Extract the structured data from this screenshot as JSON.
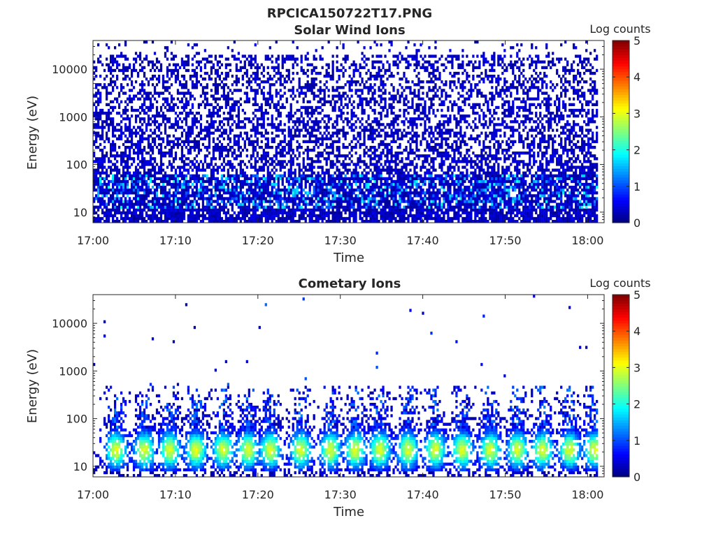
{
  "figure": {
    "title": "RPCICA150722T17.PNG"
  },
  "colors": {
    "colormap": [
      "#00007f",
      "#0000ff",
      "#007fff",
      "#00ffff",
      "#7fff7f",
      "#ffff00",
      "#ff7f00",
      "#ff0000",
      "#7f0000"
    ],
    "axis": "#262626",
    "background": "#ffffff"
  },
  "chart_data": [
    {
      "type": "heatmap",
      "title": "Solar Wind Ions",
      "xlabel": "Time",
      "ylabel": "Energy (eV)",
      "x_ticks": [
        "17:00",
        "17:10",
        "17:20",
        "17:30",
        "17:40",
        "17:50",
        "18:00"
      ],
      "xlim_minutes": [
        0,
        62
      ],
      "y_scale": "log",
      "y_ticks": [
        10,
        100,
        1000,
        10000
      ],
      "y_tick_labels": [
        "10",
        "100",
        "1000",
        "10000"
      ],
      "ylim": [
        6,
        40000
      ],
      "colorbar": {
        "label": "Log counts",
        "range": [
          0,
          5
        ],
        "ticks": [
          "0",
          "1",
          "2",
          "3",
          "4",
          "5"
        ]
      },
      "grid": false,
      "pattern": {
        "kind": "solar",
        "background_level": 0.3,
        "low_energy_band_max": 60,
        "peak_level": 2.0
      }
    },
    {
      "type": "heatmap",
      "title": "Cometary Ions",
      "xlabel": "Time",
      "ylabel": "Energy (eV)",
      "x_ticks": [
        "17:00",
        "17:10",
        "17:20",
        "17:30",
        "17:40",
        "17:50",
        "18:00"
      ],
      "xlim_minutes": [
        0,
        62
      ],
      "y_scale": "log",
      "y_ticks": [
        10,
        100,
        1000,
        10000
      ],
      "y_tick_labels": [
        "10",
        "100",
        "1000",
        "10000"
      ],
      "ylim": [
        6,
        40000
      ],
      "colorbar": {
        "label": "Log counts",
        "range": [
          0,
          5
        ],
        "ticks": [
          "0",
          "1",
          "2",
          "3",
          "4",
          "5"
        ]
      },
      "grid": false,
      "pattern": {
        "kind": "cometary",
        "burst_times_minutes": [
          2.8,
          6.2,
          9.3,
          12.5,
          15.8,
          18.8,
          21.5,
          25.2,
          28.8,
          31.8,
          34.8,
          38.2,
          41.5,
          44.8,
          48.2,
          51.5,
          54.5,
          57.8,
          60.8
        ],
        "peak_energy": 22,
        "peak_level": 2.8
      }
    }
  ]
}
